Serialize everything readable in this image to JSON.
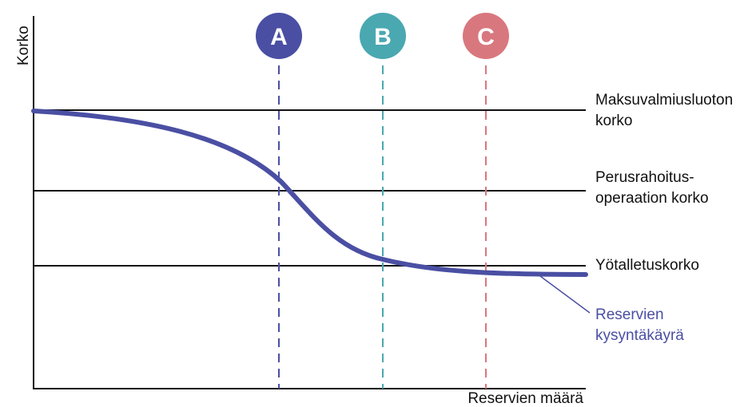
{
  "axes": {
    "y_label": "Korko",
    "x_label": "Reservien määrä"
  },
  "rate_lines": [
    {
      "id": "lending",
      "lines": [
        "Maksuvalmiusluoton",
        "korko"
      ]
    },
    {
      "id": "main",
      "lines": [
        "Perusrahoitus-",
        "operaation korko"
      ]
    },
    {
      "id": "deposit",
      "lines": [
        "Yötalletuskorko"
      ]
    }
  ],
  "markers": [
    {
      "letter": "A",
      "color": "#4a4fa3"
    },
    {
      "letter": "B",
      "color": "#4aa8b0"
    },
    {
      "letter": "C",
      "color": "#d9777e"
    }
  ],
  "curve": {
    "label_lines": [
      "Reservien",
      "kysyntäkäyrä"
    ],
    "color": "#4a4fa3"
  }
}
